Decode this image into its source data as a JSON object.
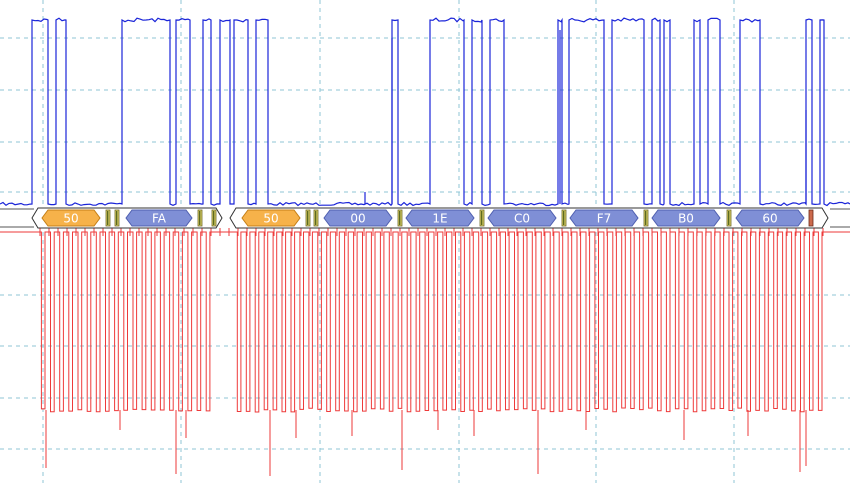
{
  "colors": {
    "sda": "#1a24d8",
    "scl": "#ee3a3a",
    "address_packet": "#f6b24a",
    "data_packet": "#7f8fd6",
    "grid": "#8fc6d6",
    "background": "#ffffff"
  },
  "decode": {
    "packets": [
      {
        "label": "50",
        "kind": "address"
      },
      {
        "label": "FA",
        "kind": "data"
      },
      {
        "label": "50",
        "kind": "address"
      },
      {
        "label": "00",
        "kind": "data"
      },
      {
        "label": "1E",
        "kind": "data"
      },
      {
        "label": "C0",
        "kind": "data"
      },
      {
        "label": "F7",
        "kind": "data"
      },
      {
        "label": "B0",
        "kind": "data"
      },
      {
        "label": "60",
        "kind": "data"
      }
    ]
  }
}
